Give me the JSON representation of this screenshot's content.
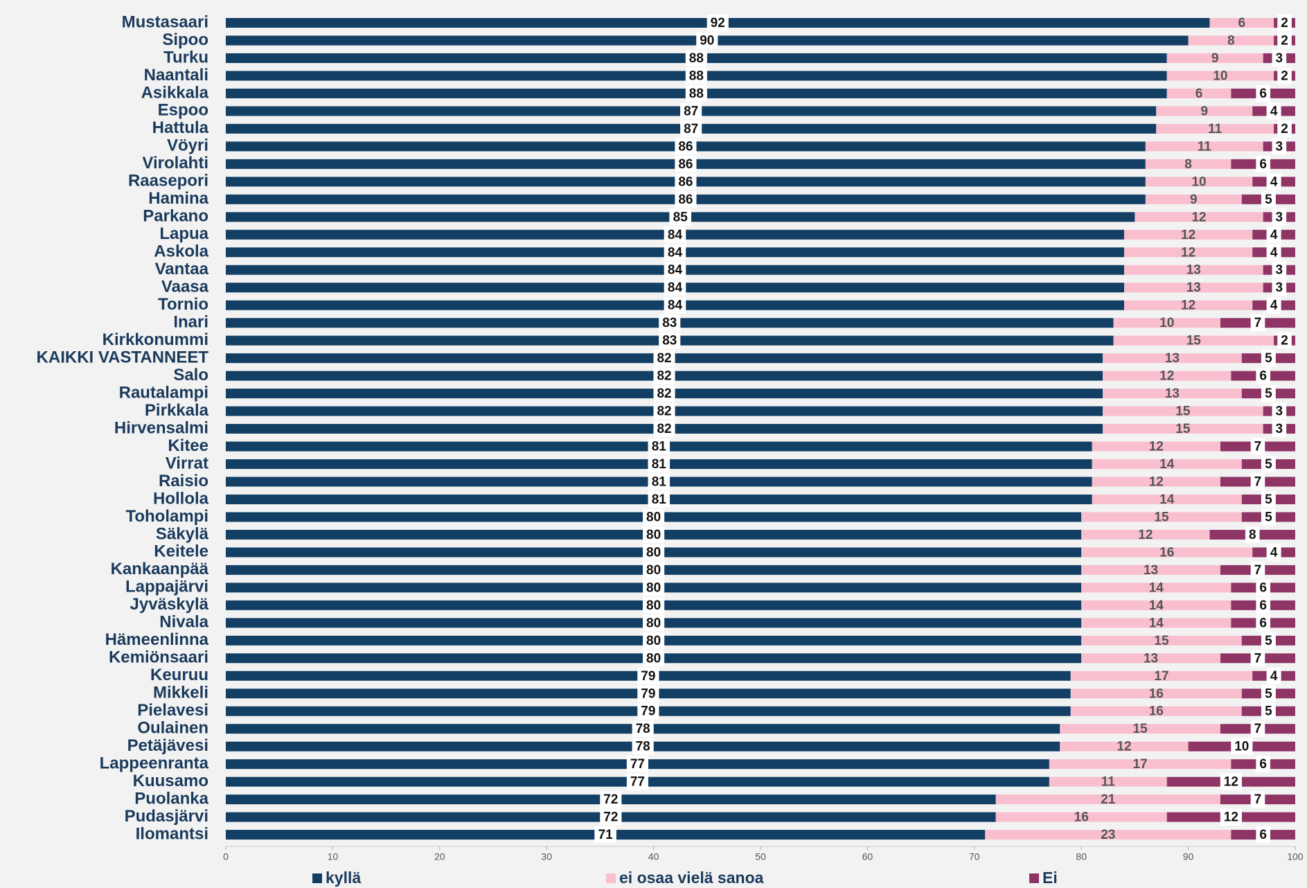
{
  "chart_data": {
    "type": "stacked-bar-horizontal",
    "categories": [
      "Mustasaari",
      "Sipoo",
      "Turku",
      "Naantali",
      "Asikkala",
      "Espoo",
      "Hattula",
      "Vöyri",
      "Virolahti",
      "Raasepori",
      "Hamina",
      "Parkano",
      "Lapua",
      "Askola",
      "Vantaa",
      "Vaasa",
      "Tornio",
      "Inari",
      "Kirkkonummi",
      "KAIKKI VASTANNEET",
      "Salo",
      "Rautalampi",
      "Pirkkala",
      "Hirvensalmi",
      "Kitee",
      "Virrat",
      "Raisio",
      "Hollola",
      "Toholampi",
      "Säkylä",
      "Keitele",
      "Kankaanpää",
      "Lappajärvi",
      "Jyväskylä",
      "Nivala",
      "Hämeenlinna",
      "Kemiönsaari",
      "Keuruu",
      "Mikkeli",
      "Pielavesi",
      "Oulainen",
      "Petäjävesi",
      "Lappeenranta",
      "Kuusamo",
      "Puolanka",
      "Pudasjärvi",
      "Ilomantsi"
    ],
    "series": [
      {
        "name": "kyllä",
        "color": "#123f63",
        "values": [
          92,
          90,
          88,
          88,
          88,
          87,
          87,
          86,
          86,
          86,
          86,
          85,
          84,
          84,
          84,
          84,
          84,
          83,
          83,
          82,
          82,
          82,
          82,
          82,
          81,
          81,
          81,
          81,
          80,
          80,
          80,
          80,
          80,
          80,
          80,
          80,
          80,
          79,
          79,
          79,
          78,
          78,
          77,
          77,
          72,
          72,
          71
        ]
      },
      {
        "name": "ei osaa vielä sanoa",
        "color": "#f9bfcf",
        "values": [
          6,
          8,
          9,
          10,
          6,
          9,
          11,
          11,
          8,
          10,
          9,
          12,
          12,
          12,
          13,
          13,
          12,
          10,
          15,
          13,
          12,
          13,
          15,
          15,
          12,
          14,
          12,
          14,
          15,
          12,
          16,
          13,
          14,
          14,
          14,
          15,
          13,
          17,
          16,
          16,
          15,
          12,
          17,
          11,
          21,
          16,
          23
        ]
      },
      {
        "name": "Ei",
        "color": "#8e3566",
        "values": [
          2,
          2,
          3,
          2,
          6,
          4,
          2,
          3,
          6,
          4,
          5,
          3,
          4,
          4,
          3,
          3,
          4,
          7,
          2,
          5,
          6,
          5,
          3,
          3,
          7,
          5,
          7,
          5,
          5,
          8,
          4,
          7,
          6,
          6,
          6,
          5,
          7,
          4,
          5,
          5,
          7,
          10,
          6,
          12,
          7,
          12,
          6
        ]
      }
    ],
    "xlim": [
      0,
      100
    ],
    "xticks": [
      0,
      10,
      20,
      30,
      40,
      50,
      60,
      70,
      80,
      90,
      100
    ],
    "legend": "bottom"
  }
}
